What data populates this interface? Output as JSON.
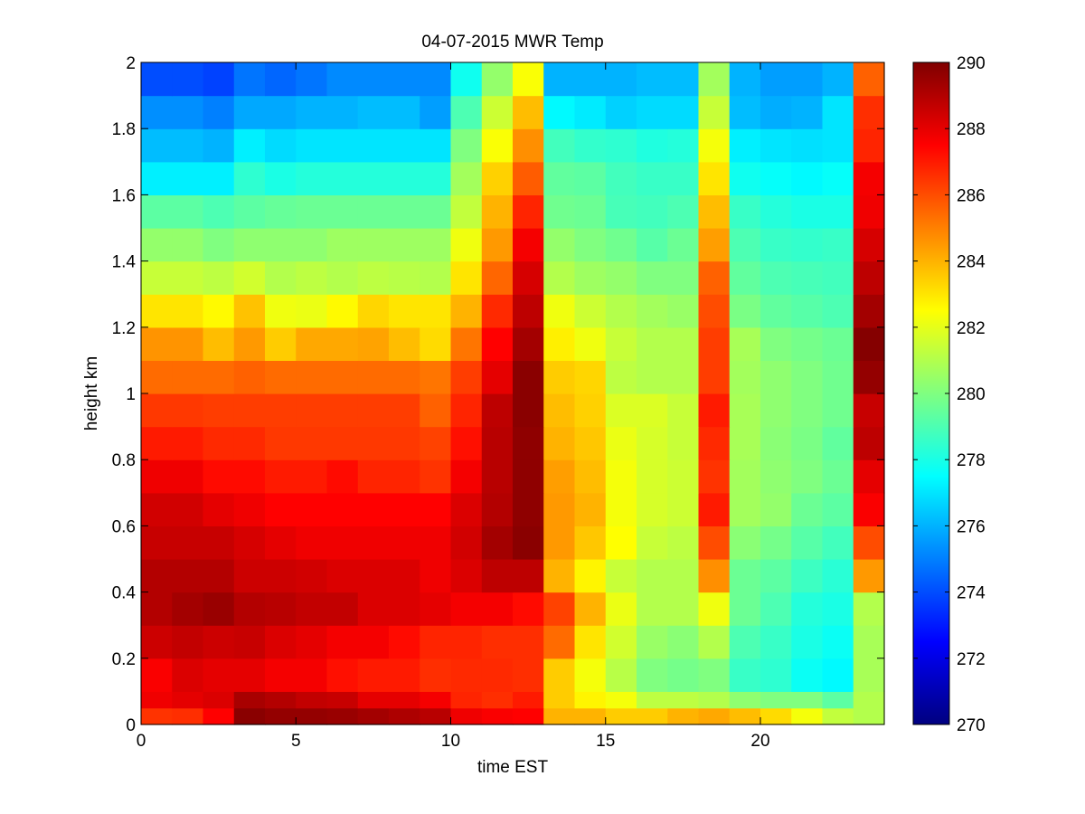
{
  "chart_data": {
    "type": "heatmap",
    "title": "04-07-2015 MWR Temp",
    "xlabel": "time EST",
    "ylabel": "height km",
    "xlim": [
      0,
      24
    ],
    "ylim": [
      0,
      2
    ],
    "x_ticks": [
      "0",
      "5",
      "10",
      "15",
      "20"
    ],
    "y_ticks": [
      "0",
      "0.2",
      "0.4",
      "0.6",
      "0.8",
      "1",
      "1.2",
      "1.4",
      "1.6",
      "1.8",
      "2"
    ],
    "colorbar": {
      "colormap": "jet",
      "range": [
        270,
        290
      ],
      "ticks": [
        "270",
        "272",
        "274",
        "276",
        "278",
        "280",
        "282",
        "284",
        "286",
        "288",
        "290"
      ]
    },
    "grid": false,
    "time_bin_centers": [
      0.5,
      1.5,
      2.5,
      3.5,
      4.5,
      5.5,
      6.5,
      7.5,
      8.5,
      9.5,
      10.5,
      11.5,
      12.5,
      13.5,
      14.5,
      15.5,
      16.5,
      17.5,
      18.5,
      19.5,
      20.5,
      21.5,
      22.5,
      23.5
    ],
    "height_bin_edges": [
      0,
      0.05,
      0.1,
      0.2,
      0.3,
      0.4,
      0.5,
      0.6,
      0.7,
      0.8,
      0.9,
      1.0,
      1.1,
      1.2,
      1.3,
      1.4,
      1.5,
      1.6,
      1.7,
      1.8,
      1.9,
      2.0
    ],
    "temperature": [
      [
        286.5,
        286.6,
        287.5,
        289.8,
        289.6,
        289.6,
        289.5,
        289.3,
        289.1,
        288.9,
        287.8,
        287.6,
        287.5,
        284.0,
        284.0,
        283.5,
        283.5,
        284.0,
        284.2,
        283.8,
        283.2,
        282.3,
        281.3,
        281.0
      ],
      [
        287.8,
        288.0,
        288.2,
        289.2,
        289.0,
        288.7,
        288.6,
        288.0,
        288.0,
        287.7,
        286.8,
        286.6,
        287.0,
        283.5,
        282.7,
        282.3,
        281.2,
        281.2,
        281.0,
        280.3,
        280.0,
        280.0,
        279.3,
        281.0
      ],
      [
        287.6,
        288.2,
        288.0,
        288.0,
        287.7,
        287.7,
        287.2,
        287.0,
        287.0,
        286.6,
        286.7,
        286.7,
        286.6,
        283.5,
        282.3,
        281.1,
        280.0,
        279.8,
        280.0,
        278.6,
        278.4,
        277.7,
        277.4,
        280.8
      ],
      [
        288.5,
        288.7,
        288.5,
        288.6,
        288.2,
        288.0,
        287.7,
        287.7,
        287.3,
        286.8,
        286.8,
        286.6,
        286.6,
        285.4,
        283.0,
        281.6,
        280.5,
        280.2,
        281.0,
        279.0,
        278.6,
        278.0,
        277.7,
        280.8
      ],
      [
        289.0,
        289.3,
        289.5,
        289.0,
        288.9,
        288.7,
        288.7,
        288.2,
        288.2,
        288.0,
        287.7,
        287.7,
        287.3,
        286.2,
        284.0,
        282.1,
        281.0,
        281.0,
        282.2,
        279.6,
        279.0,
        278.2,
        278.0,
        281.0
      ],
      [
        289.0,
        289.0,
        289.0,
        288.5,
        288.5,
        288.4,
        288.2,
        288.2,
        288.2,
        287.8,
        288.2,
        288.8,
        288.8,
        284.0,
        282.7,
        281.4,
        281.0,
        281.0,
        284.7,
        279.6,
        279.3,
        278.7,
        278.3,
        284.5
      ],
      [
        288.6,
        288.6,
        288.6,
        288.3,
        288.0,
        287.8,
        287.8,
        287.8,
        287.8,
        287.8,
        288.4,
        289.3,
        289.8,
        284.5,
        283.6,
        282.5,
        281.4,
        281.2,
        286.0,
        280.2,
        279.8,
        279.2,
        278.8,
        286.0
      ],
      [
        288.4,
        288.4,
        288.0,
        287.8,
        287.5,
        287.5,
        287.5,
        287.5,
        287.5,
        287.5,
        288.2,
        289.0,
        289.7,
        284.5,
        284.0,
        282.3,
        281.7,
        281.5,
        287.0,
        280.7,
        280.4,
        279.6,
        279.3,
        287.6
      ],
      [
        287.8,
        287.8,
        287.3,
        287.3,
        287.0,
        287.0,
        287.3,
        286.8,
        286.8,
        286.5,
        287.7,
        288.9,
        289.7,
        284.4,
        283.8,
        282.3,
        281.7,
        281.5,
        286.5,
        280.7,
        280.3,
        280.0,
        279.6,
        288.0
      ],
      [
        287.0,
        287.0,
        286.7,
        286.7,
        286.4,
        286.4,
        286.4,
        286.4,
        286.4,
        286.2,
        287.2,
        288.9,
        289.7,
        284.0,
        283.6,
        282.1,
        281.7,
        281.4,
        286.7,
        280.8,
        280.2,
        279.9,
        279.4,
        288.8
      ],
      [
        286.4,
        286.4,
        286.3,
        286.3,
        286.3,
        286.3,
        286.3,
        286.3,
        286.3,
        285.6,
        286.8,
        288.8,
        289.8,
        283.8,
        283.4,
        281.8,
        281.8,
        281.4,
        287.0,
        280.8,
        280.3,
        280.0,
        279.7,
        288.6
      ],
      [
        285.4,
        285.4,
        285.4,
        285.6,
        285.4,
        285.4,
        285.4,
        285.4,
        285.4,
        285.2,
        286.3,
        288.0,
        289.8,
        283.5,
        283.3,
        281.2,
        281.0,
        281.0,
        286.3,
        280.7,
        280.3,
        280.0,
        279.7,
        289.6
      ],
      [
        284.6,
        284.6,
        283.8,
        284.5,
        283.5,
        284.2,
        284.2,
        284.3,
        283.8,
        283.2,
        285.2,
        287.5,
        289.3,
        282.8,
        282.2,
        281.4,
        281.0,
        281.0,
        286.3,
        280.8,
        280.0,
        279.8,
        279.6,
        289.9
      ],
      [
        283.0,
        283.0,
        282.6,
        283.7,
        282.2,
        282.1,
        282.6,
        283.3,
        283.0,
        283.0,
        284.0,
        286.7,
        288.8,
        282.2,
        281.5,
        281.0,
        280.7,
        280.5,
        286.0,
        279.9,
        279.4,
        279.2,
        279.0,
        289.3
      ],
      [
        281.4,
        281.4,
        281.2,
        281.6,
        281.0,
        281.2,
        281.0,
        281.2,
        281.1,
        281.0,
        283.0,
        285.5,
        288.3,
        281.0,
        280.6,
        280.4,
        280.0,
        280.0,
        285.6,
        279.4,
        279.0,
        278.9,
        278.8,
        288.8
      ],
      [
        280.4,
        280.4,
        280.0,
        280.3,
        280.3,
        280.3,
        280.6,
        280.6,
        280.6,
        280.6,
        282.2,
        284.5,
        287.7,
        280.4,
        280.0,
        279.7,
        279.2,
        279.6,
        284.4,
        279.0,
        278.6,
        278.5,
        278.6,
        288.3
      ],
      [
        279.3,
        279.3,
        279.0,
        279.3,
        279.5,
        279.6,
        279.6,
        279.6,
        279.6,
        279.6,
        281.3,
        284.0,
        286.8,
        279.7,
        279.6,
        278.9,
        278.8,
        279.0,
        283.8,
        278.6,
        278.2,
        278.0,
        278.0,
        287.8
      ],
      [
        277.2,
        277.2,
        277.2,
        278.4,
        278.0,
        278.2,
        278.2,
        278.2,
        278.2,
        278.2,
        280.7,
        283.4,
        285.7,
        279.4,
        279.3,
        278.8,
        278.6,
        278.6,
        283.0,
        277.8,
        277.6,
        277.4,
        277.6,
        287.7
      ],
      [
        276.2,
        276.2,
        276.0,
        277.2,
        276.8,
        277.0,
        277.0,
        277.0,
        277.0,
        277.0,
        280.0,
        282.4,
        284.7,
        278.8,
        278.5,
        278.4,
        278.1,
        278.2,
        282.3,
        277.2,
        277.0,
        276.9,
        277.0,
        286.8
      ],
      [
        275.3,
        275.3,
        275.0,
        275.8,
        275.8,
        276.0,
        276.0,
        276.2,
        276.2,
        275.6,
        279.0,
        281.5,
        283.8,
        277.4,
        277.1,
        276.6,
        276.8,
        276.8,
        281.4,
        276.2,
        275.9,
        276.0,
        277.0,
        286.6
      ],
      [
        274.0,
        274.0,
        273.8,
        274.8,
        274.5,
        274.8,
        275.2,
        275.2,
        275.2,
        275.2,
        277.8,
        280.4,
        282.4,
        276.0,
        276.0,
        276.0,
        276.2,
        276.2,
        280.7,
        276.0,
        275.6,
        275.6,
        276.0,
        285.6
      ]
    ]
  }
}
